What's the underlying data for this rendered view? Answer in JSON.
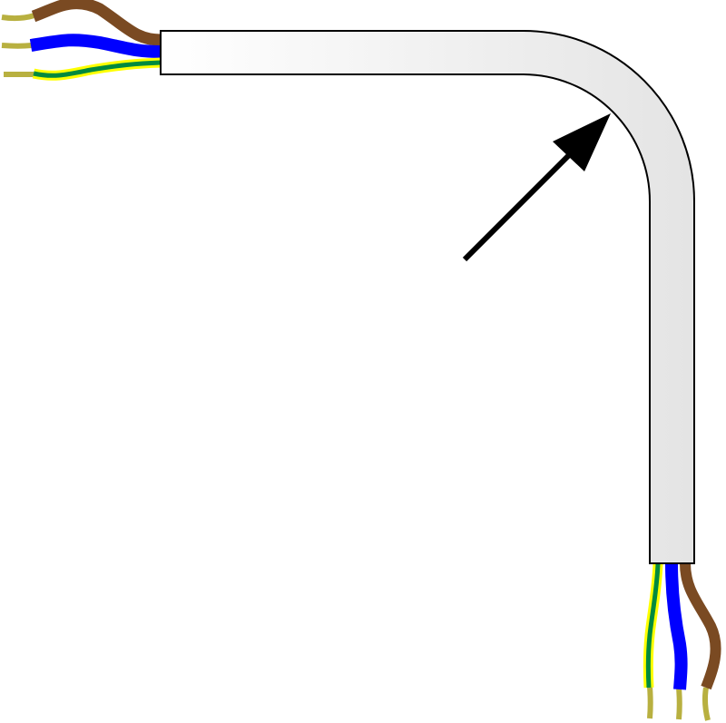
{
  "diagram": {
    "colors": {
      "live_wire": "#7a4a22",
      "neutral_wire": "#0000ff",
      "earth_stripe_outer": "#ffff00",
      "earth_stripe_inner": "#008a3e",
      "bare_conductor": "#b8b040",
      "cable_sheath_light": "#ffffff",
      "cable_sheath_dark": "#e6e6e6",
      "arrow": "#000000"
    }
  }
}
